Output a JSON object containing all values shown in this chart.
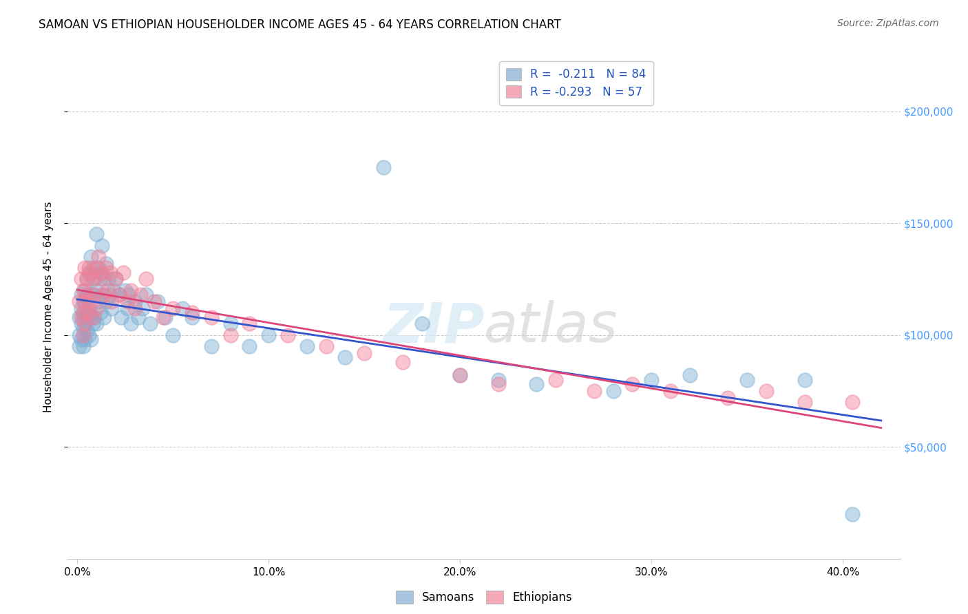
{
  "title": "SAMOAN VS ETHIOPIAN HOUSEHOLDER INCOME AGES 45 - 64 YEARS CORRELATION CHART",
  "source": "Source: ZipAtlas.com",
  "ylabel": "Householder Income Ages 45 - 64 years",
  "xlabel_ticks": [
    "0.0%",
    "10.0%",
    "20.0%",
    "30.0%",
    "40.0%"
  ],
  "xlabel_vals": [
    0.0,
    0.1,
    0.2,
    0.3,
    0.4
  ],
  "ytick_labels": [
    "$50,000",
    "$100,000",
    "$150,000",
    "$200,000"
  ],
  "ytick_vals": [
    50000,
    100000,
    150000,
    200000
  ],
  "ylim": [
    0,
    225000
  ],
  "xlim": [
    -0.005,
    0.43
  ],
  "samoan_R": -0.211,
  "samoan_N": 84,
  "ethiopian_R": -0.293,
  "ethiopian_N": 57,
  "watermark_zip": "ZIP",
  "watermark_atlas": "atlas",
  "samoan_color": "#7bafd4",
  "ethiopian_color": "#f08098",
  "regression_samoan_color": "#3355cc",
  "regression_ethiopian_color": "#dd4477",
  "legend_samoan_color": "#a8c4e0",
  "legend_ethiopian_color": "#f4a8b8",
  "legend_text_color": "#2255bb",
  "background_color": "#ffffff",
  "grid_color": "#cccccc",
  "ytick_color": "#4499ff",
  "title_fontsize": 12,
  "source_fontsize": 10,
  "tick_fontsize": 11,
  "label_fontsize": 11,
  "legend_fontsize": 12,
  "samoan_x": [
    0.001,
    0.001,
    0.001,
    0.002,
    0.002,
    0.002,
    0.002,
    0.003,
    0.003,
    0.003,
    0.003,
    0.003,
    0.004,
    0.004,
    0.004,
    0.004,
    0.005,
    0.005,
    0.005,
    0.005,
    0.005,
    0.006,
    0.006,
    0.006,
    0.007,
    0.007,
    0.007,
    0.007,
    0.008,
    0.008,
    0.008,
    0.009,
    0.009,
    0.01,
    0.01,
    0.01,
    0.011,
    0.011,
    0.012,
    0.012,
    0.013,
    0.013,
    0.014,
    0.014,
    0.015,
    0.015,
    0.016,
    0.017,
    0.018,
    0.019,
    0.02,
    0.022,
    0.023,
    0.025,
    0.026,
    0.027,
    0.028,
    0.03,
    0.032,
    0.034,
    0.036,
    0.038,
    0.042,
    0.046,
    0.05,
    0.055,
    0.06,
    0.07,
    0.08,
    0.09,
    0.1,
    0.12,
    0.14,
    0.16,
    0.18,
    0.2,
    0.22,
    0.24,
    0.28,
    0.3,
    0.32,
    0.35,
    0.38,
    0.405
  ],
  "samoan_y": [
    108000,
    100000,
    95000,
    112000,
    105000,
    98000,
    118000,
    110000,
    103000,
    115000,
    95000,
    108000,
    120000,
    105000,
    98000,
    115000,
    125000,
    110000,
    102000,
    118000,
    108000,
    128000,
    112000,
    100000,
    135000,
    118000,
    108000,
    98000,
    130000,
    118000,
    105000,
    125000,
    108000,
    145000,
    120000,
    105000,
    130000,
    115000,
    128000,
    110000,
    140000,
    118000,
    125000,
    108000,
    132000,
    115000,
    125000,
    118000,
    112000,
    120000,
    125000,
    118000,
    108000,
    120000,
    112000,
    118000,
    105000,
    115000,
    108000,
    112000,
    118000,
    105000,
    115000,
    108000,
    100000,
    112000,
    108000,
    95000,
    105000,
    95000,
    100000,
    95000,
    90000,
    175000,
    105000,
    82000,
    80000,
    78000,
    75000,
    80000,
    82000,
    80000,
    80000,
    20000
  ],
  "ethiopian_x": [
    0.001,
    0.002,
    0.002,
    0.003,
    0.003,
    0.003,
    0.004,
    0.004,
    0.004,
    0.005,
    0.005,
    0.006,
    0.006,
    0.007,
    0.007,
    0.008,
    0.008,
    0.009,
    0.01,
    0.01,
    0.011,
    0.012,
    0.013,
    0.014,
    0.015,
    0.016,
    0.017,
    0.018,
    0.02,
    0.022,
    0.024,
    0.026,
    0.028,
    0.03,
    0.033,
    0.036,
    0.04,
    0.045,
    0.05,
    0.06,
    0.07,
    0.08,
    0.09,
    0.11,
    0.13,
    0.15,
    0.17,
    0.2,
    0.22,
    0.25,
    0.27,
    0.29,
    0.31,
    0.34,
    0.36,
    0.38,
    0.405
  ],
  "ethiopian_y": [
    115000,
    125000,
    108000,
    120000,
    110000,
    100000,
    130000,
    115000,
    105000,
    125000,
    118000,
    130000,
    110000,
    128000,
    115000,
    125000,
    108000,
    118000,
    130000,
    112000,
    135000,
    125000,
    128000,
    118000,
    130000,
    120000,
    128000,
    115000,
    125000,
    118000,
    128000,
    115000,
    120000,
    112000,
    118000,
    125000,
    115000,
    108000,
    112000,
    110000,
    108000,
    100000,
    105000,
    100000,
    95000,
    92000,
    88000,
    82000,
    78000,
    80000,
    75000,
    78000,
    75000,
    72000,
    75000,
    70000,
    70000
  ]
}
